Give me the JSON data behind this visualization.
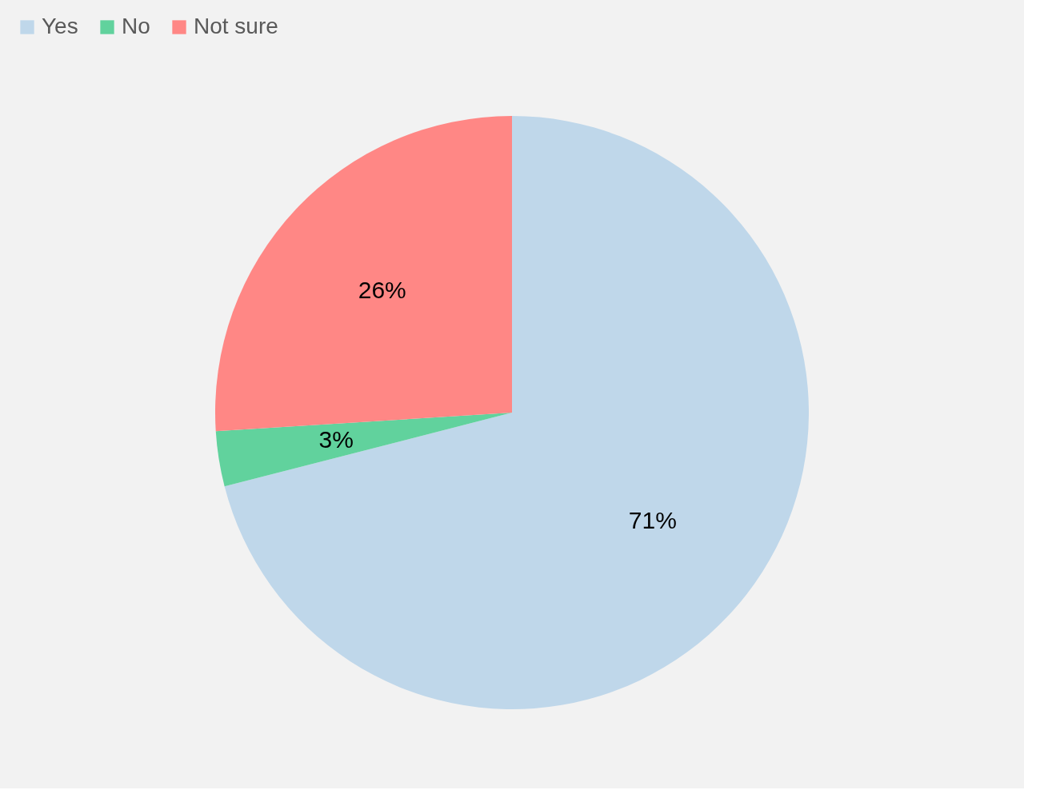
{
  "chart_data": {
    "type": "pie",
    "categories": [
      "Yes",
      "No",
      "Not sure"
    ],
    "values": [
      71,
      3,
      26
    ],
    "colors": [
      "#bfd7ea",
      "#61d29d",
      "#ff8785"
    ],
    "value_labels": [
      "71%",
      "3%",
      "26%"
    ],
    "legend": "top"
  }
}
